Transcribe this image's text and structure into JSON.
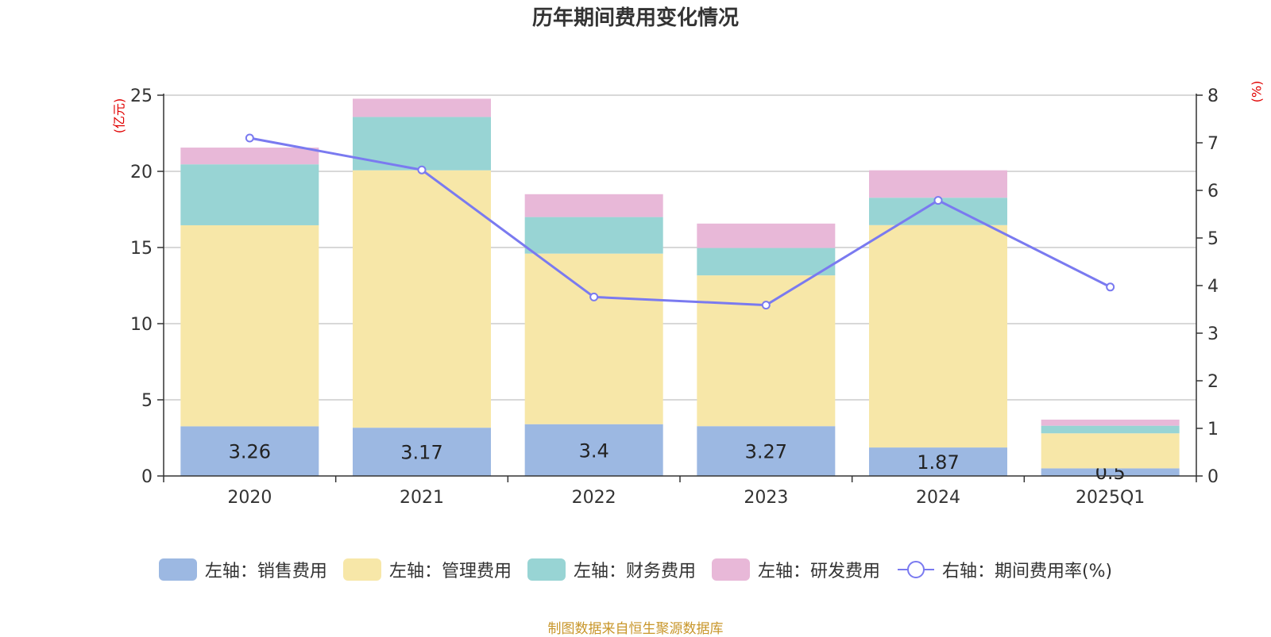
{
  "chart_data": {
    "type": "bar",
    "title": "历年期间费用变化情况",
    "categories": [
      "2020",
      "2021",
      "2022",
      "2023",
      "2024",
      "2025Q1"
    ],
    "stacked": true,
    "y_left": {
      "label": "(亿元)",
      "ylim": [
        0,
        25
      ],
      "ticks": [
        0,
        5,
        10,
        15,
        20,
        25
      ]
    },
    "y_right": {
      "label": "(%)",
      "ylim": [
        0,
        8
      ],
      "ticks": [
        0,
        1,
        2,
        3,
        4,
        5,
        6,
        7,
        8
      ]
    },
    "series": [
      {
        "name": "左轴：销售费用",
        "type": "bar",
        "axis": "left",
        "color": "#9cb8e2",
        "values": [
          3.26,
          3.17,
          3.4,
          3.27,
          1.87,
          0.5
        ],
        "data_labels": [
          "3.26",
          "3.17",
          "3.4",
          "3.27",
          "1.87",
          "0.5"
        ]
      },
      {
        "name": "左轴：管理费用",
        "type": "bar",
        "axis": "left",
        "color": "#f7e7a8",
        "values": [
          13.2,
          16.9,
          11.2,
          9.9,
          14.6,
          2.3
        ]
      },
      {
        "name": "左轴：财务费用",
        "type": "bar",
        "axis": "left",
        "color": "#98d4d4",
        "values": [
          4.0,
          3.5,
          2.4,
          1.8,
          1.8,
          0.5
        ]
      },
      {
        "name": "左轴：研发费用",
        "type": "bar",
        "axis": "left",
        "color": "#e8b8d8",
        "values": [
          1.1,
          1.2,
          1.5,
          1.6,
          1.8,
          0.4
        ]
      },
      {
        "name": "右轴：期间费用率(%)",
        "type": "line",
        "axis": "right",
        "color": "#7a7af0",
        "values": [
          7.1,
          6.43,
          3.76,
          3.59,
          5.79,
          3.97
        ]
      }
    ],
    "grid": true,
    "legend_position": "bottom"
  },
  "axis_label_color": "#e00000",
  "source_text": "制图数据来自恒生聚源数据库",
  "source_color": "#c8962a"
}
